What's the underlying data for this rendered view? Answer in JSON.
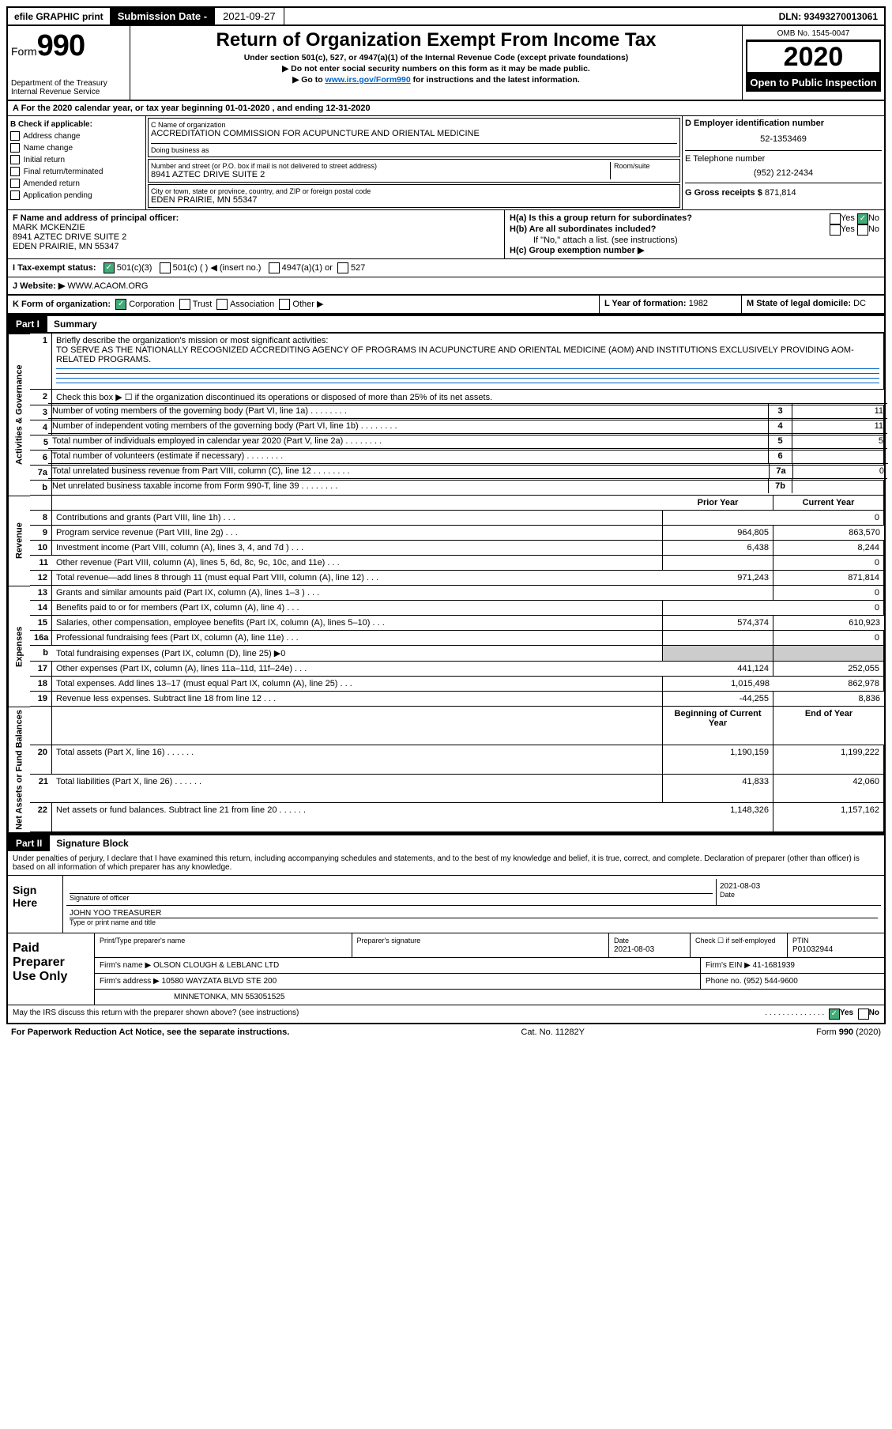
{
  "topbar": {
    "efile": "efile GRAPHIC print",
    "subdate_label": "Submission Date - ",
    "subdate_value": "2021-09-27",
    "dln": "DLN: 93493270013061"
  },
  "header": {
    "form_prefix": "Form",
    "form_num": "990",
    "dept": "Department of the Treasury\nInternal Revenue Service",
    "title": "Return of Organization Exempt From Income Tax",
    "sub1": "Under section 501(c), 527, or 4947(a)(1) of the Internal Revenue Code (except private foundations)",
    "sub2": "Do not enter social security numbers on this form as it may be made public.",
    "sub3_pre": "Go to ",
    "sub3_link": "www.irs.gov/Form990",
    "sub3_post": " for instructions and the latest information.",
    "omb": "OMB No. 1545-0047",
    "year": "2020",
    "open": "Open to Public Inspection"
  },
  "rowA": {
    "text": "A For the 2020 calendar year, or tax year beginning 01-01-2020    , and ending 12-31-2020"
  },
  "colB": {
    "heading": "B Check if applicable:",
    "items": [
      "Address change",
      "Name change",
      "Initial return",
      "Final return/terminated",
      "Amended return",
      "Application pending"
    ]
  },
  "colC": {
    "name_lbl": "C Name of organization",
    "name_val": "ACCREDITATION COMMISSION FOR ACUPUNCTURE AND ORIENTAL MEDICINE",
    "dba_lbl": "Doing business as",
    "addr_lbl": "Number and street (or P.O. box if mail is not delivered to street address)",
    "room_lbl": "Room/suite",
    "addr_val": "8941 AZTEC DRIVE SUITE 2",
    "city_lbl": "City or town, state or province, country, and ZIP or foreign postal code",
    "city_val": "EDEN PRAIRIE, MN  55347"
  },
  "colD": {
    "ein_lbl": "D Employer identification number",
    "ein_val": "52-1353469",
    "tel_lbl": "E Telephone number",
    "tel_val": "(952) 212-2434",
    "gross_lbl": "G Gross receipts $",
    "gross_val": "871,814"
  },
  "rowF": {
    "lbl": "F  Name and address of principal officer:",
    "name": "MARK MCKENZIE",
    "addr1": "8941 AZTEC DRIVE SUITE 2",
    "addr2": "EDEN PRAIRIE, MN  55347"
  },
  "rowH": {
    "ha": "H(a)  Is this a group return for subordinates?",
    "ha_yes": "Yes",
    "ha_no": "No",
    "hb": "H(b)  Are all subordinates included?",
    "hb_yes": "Yes",
    "hb_no": "No",
    "hb_note": "If \"No,\" attach a list. (see instructions)",
    "hc": "H(c)  Group exemption number ▶"
  },
  "rowI": {
    "lbl": "I    Tax-exempt status:",
    "o1": "501(c)(3)",
    "o2": "501(c) (  ) ◀ (insert no.)",
    "o3": "4947(a)(1) or",
    "o4": "527"
  },
  "rowJ": {
    "lbl": "J   Website: ▶",
    "val": "WWW.ACAOM.ORG"
  },
  "rowK": {
    "lbl": "K Form of organization:",
    "o1": "Corporation",
    "o2": "Trust",
    "o3": "Association",
    "o4": "Other ▶"
  },
  "rowL": {
    "lbl": "L Year of formation:",
    "val": "1982"
  },
  "rowM": {
    "lbl": "M State of legal domicile:",
    "val": "DC"
  },
  "part1": {
    "label": "Part I",
    "title": "Summary",
    "side_ag": "Activities & Governance",
    "side_rev": "Revenue",
    "side_exp": "Expenses",
    "side_na": "Net Assets or Fund Balances",
    "l1_lbl": "Briefly describe the organization's mission or most significant activities:",
    "l1_val": "TO SERVE AS THE NATIONALLY RECOGNIZED ACCREDITING AGENCY OF PROGRAMS IN ACUPUNCTURE AND ORIENTAL MEDICINE (AOM) AND INSTITUTIONS EXCLUSIVELY PROVIDING AOM-RELATED PROGRAMS.",
    "l2": "Check this box ▶ ☐  if the organization discontinued its operations or disposed of more than 25% of its net assets.",
    "rows_ag": [
      {
        "n": "3",
        "t": "Number of voting members of the governing body (Part VI, line 1a)",
        "bn": "3",
        "v": "11"
      },
      {
        "n": "4",
        "t": "Number of independent voting members of the governing body (Part VI, line 1b)",
        "bn": "4",
        "v": "11"
      },
      {
        "n": "5",
        "t": "Total number of individuals employed in calendar year 2020 (Part V, line 2a)",
        "bn": "5",
        "v": "5"
      },
      {
        "n": "6",
        "t": "Total number of volunteers (estimate if necessary)",
        "bn": "6",
        "v": ""
      },
      {
        "n": "7a",
        "t": "Total unrelated business revenue from Part VIII, column (C), line 12",
        "bn": "7a",
        "v": "0"
      },
      {
        "n": "b",
        "t": "Net unrelated business taxable income from Form 990-T, line 39",
        "bn": "7b",
        "v": ""
      }
    ],
    "hdr_prior": "Prior Year",
    "hdr_curr": "Current Year",
    "rows_rev": [
      {
        "n": "8",
        "t": "Contributions and grants (Part VIII, line 1h)",
        "p": "",
        "c": "0"
      },
      {
        "n": "9",
        "t": "Program service revenue (Part VIII, line 2g)",
        "p": "964,805",
        "c": "863,570"
      },
      {
        "n": "10",
        "t": "Investment income (Part VIII, column (A), lines 3, 4, and 7d )",
        "p": "6,438",
        "c": "8,244"
      },
      {
        "n": "11",
        "t": "Other revenue (Part VIII, column (A), lines 5, 6d, 8c, 9c, 10c, and 11e)",
        "p": "",
        "c": "0"
      },
      {
        "n": "12",
        "t": "Total revenue—add lines 8 through 11 (must equal Part VIII, column (A), line 12)",
        "p": "971,243",
        "c": "871,814"
      }
    ],
    "rows_exp": [
      {
        "n": "13",
        "t": "Grants and similar amounts paid (Part IX, column (A), lines 1–3 )",
        "p": "",
        "c": "0"
      },
      {
        "n": "14",
        "t": "Benefits paid to or for members (Part IX, column (A), line 4)",
        "p": "",
        "c": "0"
      },
      {
        "n": "15",
        "t": "Salaries, other compensation, employee benefits (Part IX, column (A), lines 5–10)",
        "p": "574,374",
        "c": "610,923"
      },
      {
        "n": "16a",
        "t": "Professional fundraising fees (Part IX, column (A), line 11e)",
        "p": "",
        "c": "0"
      },
      {
        "n": "b",
        "t": "Total fundraising expenses (Part IX, column (D), line 25) ▶0",
        "p": "SHADE",
        "c": "SHADE"
      },
      {
        "n": "17",
        "t": "Other expenses (Part IX, column (A), lines 11a–11d, 11f–24e)",
        "p": "441,124",
        "c": "252,055"
      },
      {
        "n": "18",
        "t": "Total expenses. Add lines 13–17 (must equal Part IX, column (A), line 25)",
        "p": "1,015,498",
        "c": "862,978"
      },
      {
        "n": "19",
        "t": "Revenue less expenses. Subtract line 18 from line 12",
        "p": "-44,255",
        "c": "8,836"
      }
    ],
    "hdr_beg": "Beginning of Current Year",
    "hdr_end": "End of Year",
    "rows_na": [
      {
        "n": "20",
        "t": "Total assets (Part X, line 16)",
        "p": "1,190,159",
        "c": "1,199,222"
      },
      {
        "n": "21",
        "t": "Total liabilities (Part X, line 26)",
        "p": "41,833",
        "c": "42,060"
      },
      {
        "n": "22",
        "t": "Net assets or fund balances. Subtract line 21 from line 20",
        "p": "1,148,326",
        "c": "1,157,162"
      }
    ]
  },
  "part2": {
    "label": "Part II",
    "title": "Signature Block",
    "decl": "Under penalties of perjury, I declare that I have examined this return, including accompanying schedules and statements, and to the best of my knowledge and belief, it is true, correct, and complete. Declaration of preparer (other than officer) is based on all information of which preparer has any knowledge.",
    "sign_here": "Sign Here",
    "sig_of_officer": "Signature of officer",
    "sig_date": "2021-08-03",
    "date_lbl": "Date",
    "officer_name": "JOHN YOO  TREASURER",
    "officer_lbl": "Type or print name and title",
    "paid": "Paid Preparer Use Only",
    "prep_name_lbl": "Print/Type preparer's name",
    "prep_sig_lbl": "Preparer's signature",
    "prep_date_lbl": "Date",
    "prep_date": "2021-08-03",
    "prep_check": "Check ☐ if self-employed",
    "ptin_lbl": "PTIN",
    "ptin": "P01032944",
    "firm_name_lbl": "Firm's name   ▶",
    "firm_name": "OLSON CLOUGH & LEBLANC LTD",
    "firm_ein_lbl": "Firm's EIN ▶",
    "firm_ein": "41-1681939",
    "firm_addr_lbl": "Firm's address ▶",
    "firm_addr1": "10580 WAYZATA BLVD STE 200",
    "firm_addr2": "MINNETONKA, MN  553051525",
    "firm_phone_lbl": "Phone no.",
    "firm_phone": "(952) 544-9600",
    "discuss": "May the IRS discuss this return with the preparer shown above? (see instructions)",
    "discuss_yes": "Yes",
    "discuss_no": "No"
  },
  "footer": {
    "left": "For Paperwork Reduction Act Notice, see the separate instructions.",
    "mid": "Cat. No. 11282Y",
    "right": "Form 990 (2020)"
  }
}
